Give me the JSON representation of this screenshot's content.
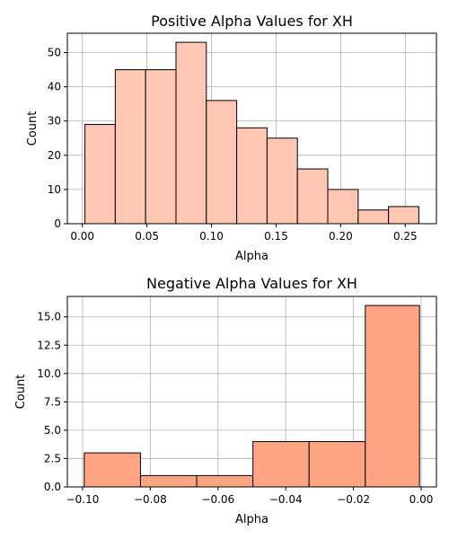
{
  "chart_data": [
    {
      "type": "bar",
      "title": "Positive Alpha Values for XH",
      "xlabel": "Alpha",
      "ylabel": "Count",
      "color": "#ffc6b4",
      "bin_edges": [
        0.002,
        0.0255,
        0.049,
        0.0725,
        0.096,
        0.1195,
        0.143,
        0.1665,
        0.19,
        0.2135,
        0.237,
        0.2605
      ],
      "values": [
        29,
        45,
        45,
        53,
        36,
        28,
        25,
        16,
        10,
        4,
        5
      ],
      "xlim": [
        -0.0116,
        0.2741
      ],
      "ylim": [
        0,
        55.65
      ],
      "xticks": [
        0.0,
        0.05,
        0.1,
        0.15,
        0.2,
        0.25
      ],
      "xtick_labels": [
        "0.00",
        "0.05",
        "0.10",
        "0.15",
        "0.20",
        "0.25"
      ],
      "yticks": [
        0,
        10,
        20,
        30,
        40,
        50
      ],
      "ytick_labels": [
        "0",
        "10",
        "20",
        "30",
        "40",
        "50"
      ],
      "grid": true
    },
    {
      "type": "bar",
      "title": "Negative Alpha Values for XH",
      "xlabel": "Alpha",
      "ylabel": "Count",
      "color": "#ffa584",
      "bin_edges": [
        -0.0995,
        -0.0829,
        -0.0663,
        -0.0497,
        -0.0331,
        -0.0165,
        -0.0005
      ],
      "values": [
        3,
        1,
        1,
        4,
        4,
        16
      ],
      "xlim": [
        -0.1045,
        0.0045
      ],
      "ylim": [
        0,
        16.8
      ],
      "xticks": [
        -0.1,
        -0.08,
        -0.06,
        -0.04,
        -0.02,
        0.0
      ],
      "xtick_labels": [
        "−0.10",
        "−0.08",
        "−0.06",
        "−0.04",
        "−0.02",
        "0.00"
      ],
      "yticks": [
        0,
        2.5,
        5,
        7.5,
        10,
        12.5,
        15
      ],
      "ytick_labels": [
        "0.0",
        "2.5",
        "5.0",
        "7.5",
        "10.0",
        "12.5",
        "15.0"
      ],
      "grid": true
    }
  ]
}
